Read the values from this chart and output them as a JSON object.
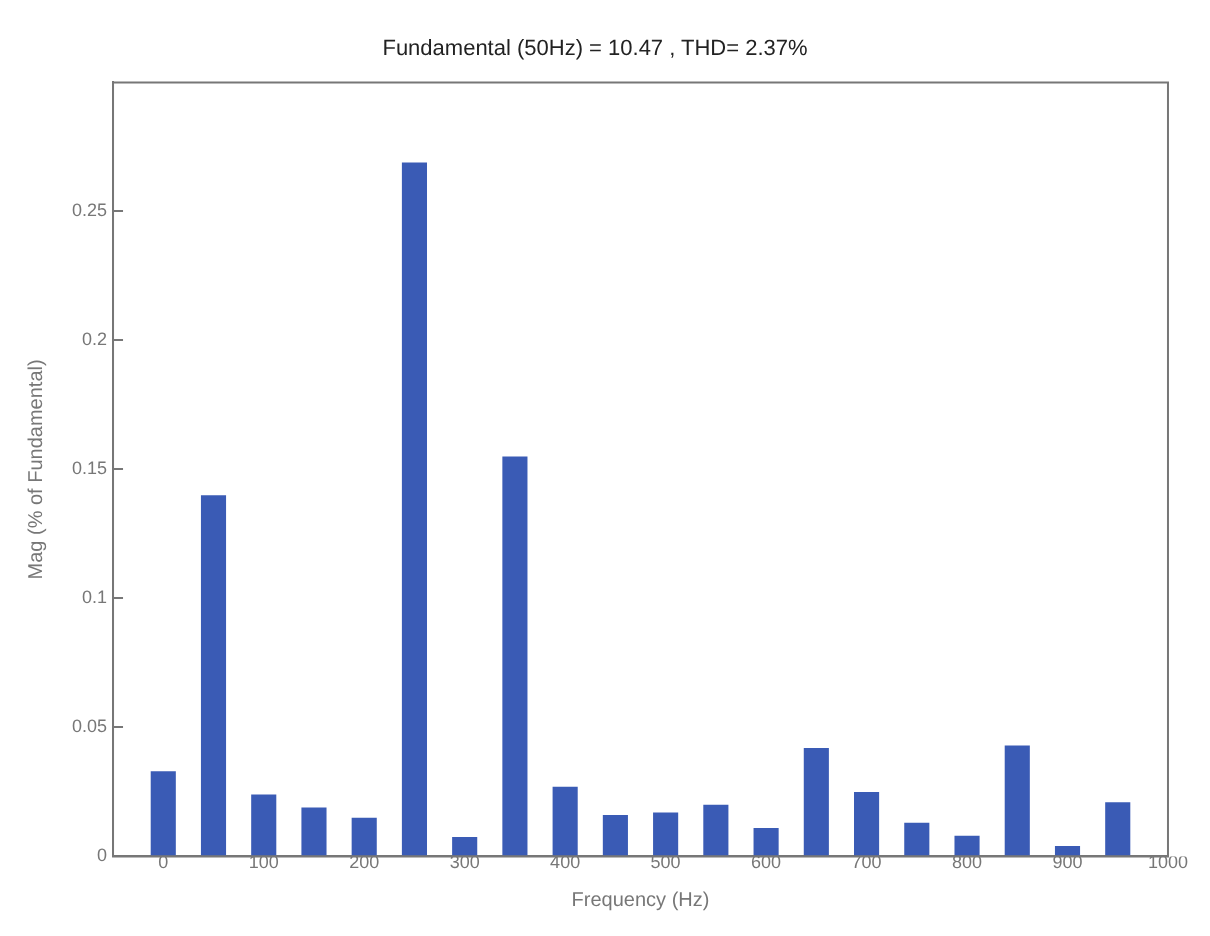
{
  "chart_data": {
    "type": "bar",
    "title": "Fundamental (50Hz) = 10.47 , THD= 2.37%",
    "xlabel": "Frequency (Hz)",
    "ylabel": "Mag (% of Fundamental)",
    "x": [
      0,
      50,
      100,
      150,
      200,
      250,
      300,
      350,
      400,
      450,
      500,
      550,
      600,
      650,
      700,
      750,
      800,
      850,
      900,
      950
    ],
    "values": [
      0.033,
      0.14,
      0.024,
      0.019,
      0.015,
      0.269,
      0.0075,
      0.155,
      0.027,
      0.016,
      0.017,
      0.02,
      0.011,
      0.042,
      0.025,
      0.013,
      0.008,
      0.043,
      0.004,
      0.021
    ],
    "color": "#3a5bb5",
    "xlim": [
      -50,
      1000
    ],
    "xticks": [
      0,
      100,
      200,
      300,
      400,
      500,
      600,
      700,
      800,
      900,
      1000
    ],
    "ylim": [
      0,
      0.3
    ],
    "yticks": [
      0,
      0.05,
      0.1,
      0.15,
      0.2,
      0.25
    ],
    "grid": false,
    "legend": false
  }
}
